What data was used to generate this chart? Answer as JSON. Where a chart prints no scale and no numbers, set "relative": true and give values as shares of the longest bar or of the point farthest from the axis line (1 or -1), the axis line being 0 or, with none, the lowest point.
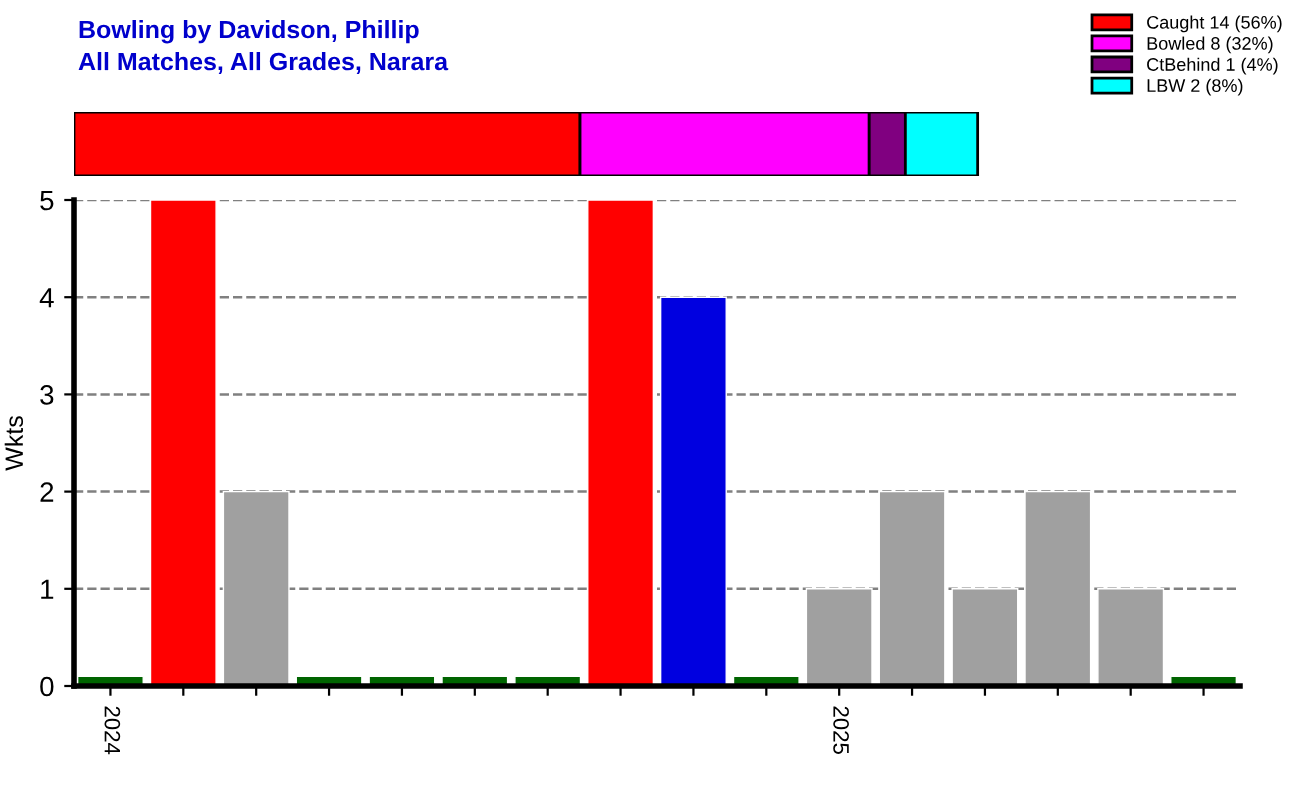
{
  "chart_data": [
    {
      "type": "bar",
      "title": "Bowling by Davidson, Phillip",
      "subtitle": "All Matches, All Grades, Narara",
      "orientation": "horizontal",
      "stacked": true,
      "relative": true,
      "legend": "top right",
      "categories": [
        null
      ],
      "series": [
        {
          "name": "Caught 14 (56%)",
          "color": "#ff0000",
          "values": [
            0.56
          ]
        },
        {
          "name": "Bowled 8 (32%)",
          "color": "#ff00ff",
          "values": [
            0.32
          ]
        },
        {
          "name": "CtBehind 1 (4%)",
          "color": "#800080",
          "values": [
            0.04
          ]
        },
        {
          "name": "LBW 2 (8%)",
          "color": "#00ffff",
          "values": [
            0.08
          ]
        }
      ]
    },
    {
      "type": "bar",
      "ylabel": "Wkts",
      "categories": [
        "2024",
        null,
        null,
        null,
        null,
        null,
        null,
        null,
        null,
        null,
        "2025",
        null,
        null,
        null,
        null,
        null
      ],
      "values": [
        0.1,
        5,
        2,
        0.1,
        0.1,
        0.1,
        0.1,
        5,
        4,
        0.1,
        1,
        2,
        1,
        2,
        1,
        0.1
      ],
      "colors": [
        "#006400",
        "#ff0000",
        "#a0a0a0",
        "#006400",
        "#006400",
        "#006400",
        "#006400",
        "#ff0000",
        "#0000e0",
        "#006400",
        "#a0a0a0",
        "#a0a0a0",
        "#a0a0a0",
        "#a0a0a0",
        "#a0a0a0",
        "#006400"
      ],
      "ylim": [
        0,
        5
      ],
      "yticks": [
        0,
        1,
        2,
        3,
        4,
        5
      ],
      "grid": "y"
    }
  ]
}
